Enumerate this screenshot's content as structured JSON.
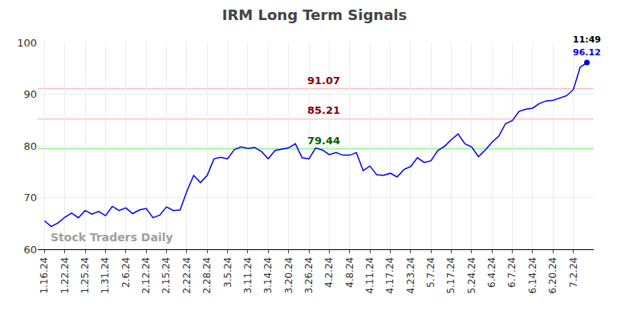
{
  "chart_data": {
    "type": "line",
    "title": "IRM Long Term Signals",
    "categories": [
      "1.16.24",
      null,
      null,
      "1.22.24",
      null,
      null,
      "1.25.24",
      null,
      null,
      "1.31.24",
      null,
      null,
      "2.6.24",
      null,
      null,
      "2.12.24",
      null,
      null,
      "2.15.24",
      null,
      null,
      "2.22.24",
      null,
      null,
      "2.28.24",
      null,
      null,
      "3.5.24",
      null,
      null,
      "3.11.24",
      null,
      null,
      "3.14.24",
      null,
      null,
      "3.20.24",
      null,
      null,
      "3.26.24",
      null,
      null,
      "4.2.24",
      null,
      null,
      "4.8.24",
      null,
      null,
      "4.11.24",
      null,
      null,
      "4.17.24",
      null,
      null,
      "4.23.24",
      null,
      null,
      "5.7.24",
      null,
      null,
      "5.17.24",
      null,
      null,
      "5.24.24",
      null,
      null,
      "6.4.24",
      null,
      null,
      "6.7.24",
      null,
      null,
      "6.14.24",
      null,
      null,
      "6.20.24",
      null,
      null,
      "7.2.24",
      null,
      null
    ],
    "values": [
      65.5,
      64.4,
      65.1,
      66.2,
      67.0,
      66.1,
      67.5,
      66.8,
      67.3,
      66.5,
      68.3,
      67.5,
      68.0,
      66.9,
      67.6,
      67.9,
      66.1,
      66.6,
      68.2,
      67.5,
      67.6,
      71.2,
      74.3,
      72.9,
      74.3,
      77.5,
      77.8,
      77.5,
      79.3,
      79.8,
      79.5,
      79.7,
      78.9,
      77.5,
      79.1,
      79.4,
      79.6,
      80.4,
      77.7,
      77.5,
      79.6,
      79.2,
      78.3,
      78.7,
      78.2,
      78.2,
      78.7,
      75.2,
      76.1,
      74.4,
      74.3,
      74.7,
      74.0,
      75.4,
      76.0,
      77.7,
      76.8,
      77.1,
      79.1,
      79.9,
      81.2,
      82.3,
      80.4,
      79.8,
      77.9,
      79.2,
      80.7,
      81.9,
      84.3,
      84.9,
      86.7,
      87.1,
      87.3,
      88.2,
      88.7,
      88.8,
      89.2,
      89.7,
      90.9,
      95.2,
      96.12
    ],
    "color": "#0000ee",
    "ylim": [
      60,
      100
    ],
    "yticks": [
      60,
      70,
      80,
      90,
      100
    ],
    "grid": true,
    "levels": [
      {
        "value": 91.07,
        "color": "#8b0000"
      },
      {
        "value": 85.21,
        "color": "#8b0000"
      },
      {
        "value": 79.44,
        "color": "#006400"
      }
    ],
    "last_point_time": "11:49",
    "watermark": "Stock Traders Daily"
  }
}
